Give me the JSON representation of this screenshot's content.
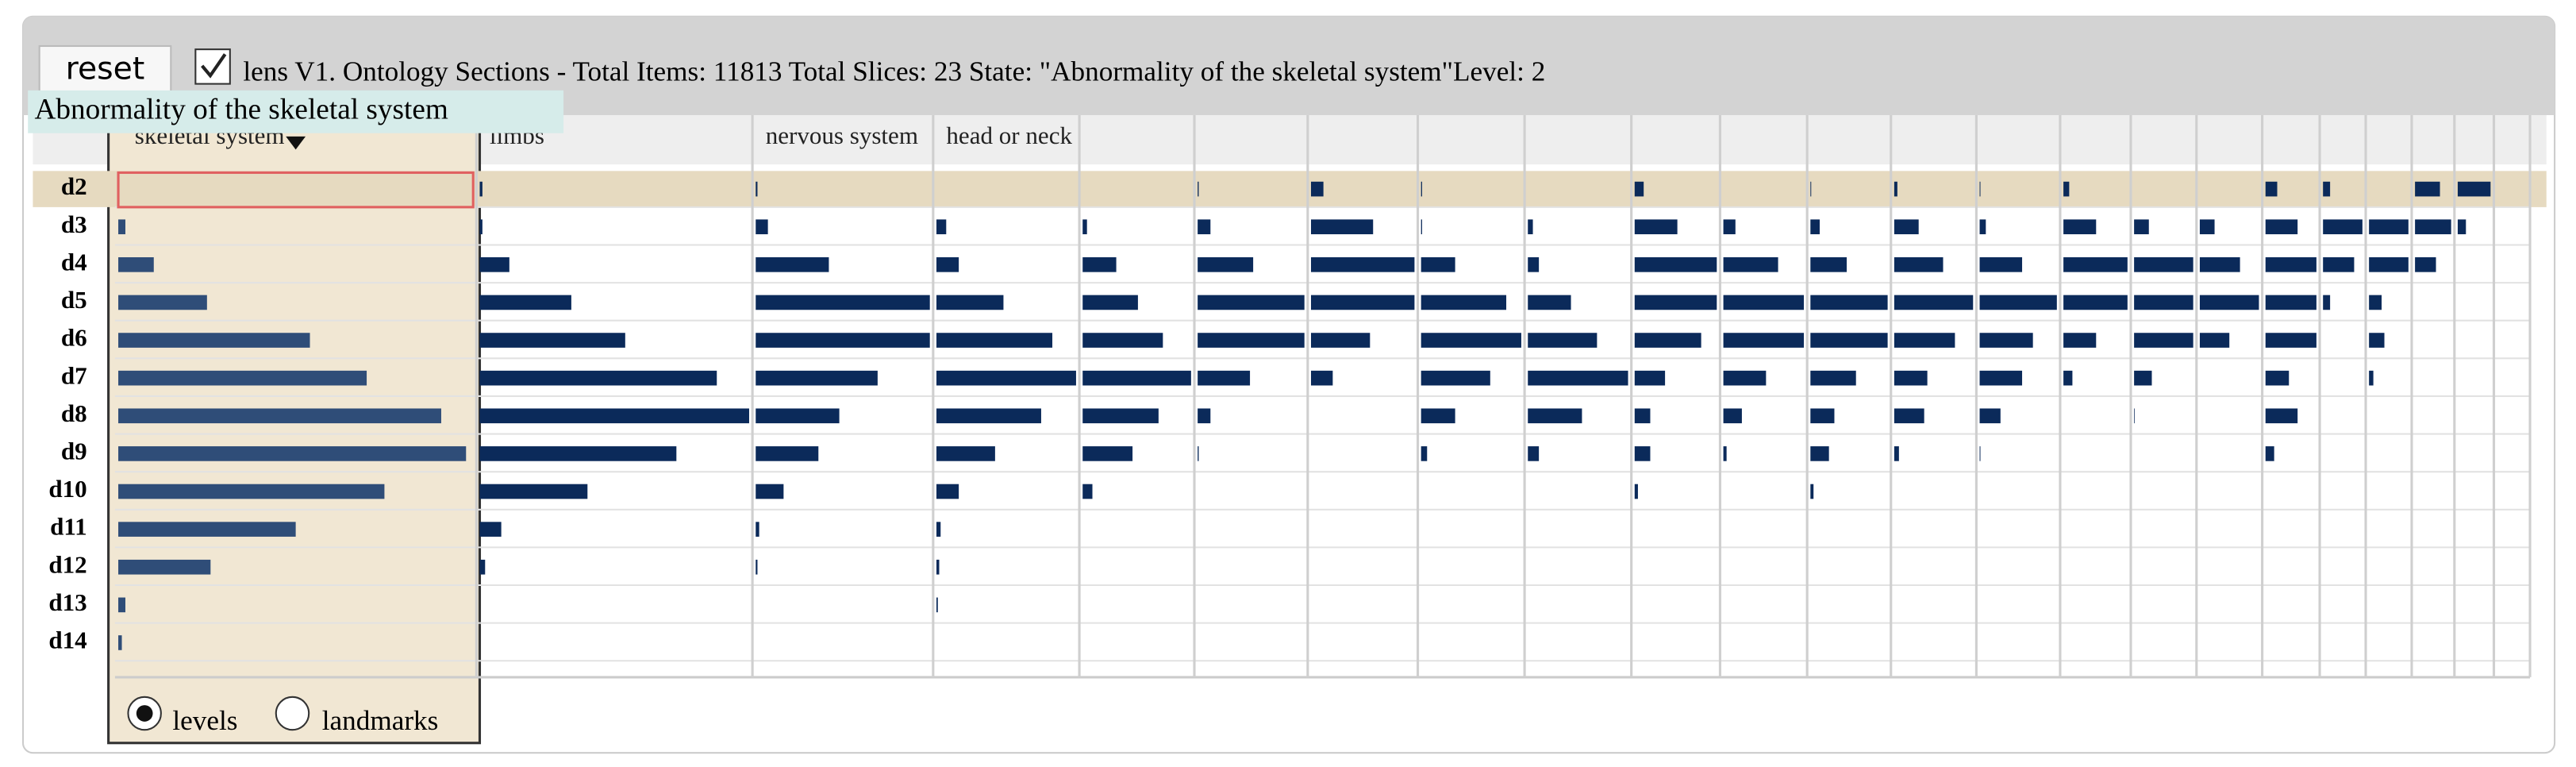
{
  "toolbar": {
    "reset": "reset",
    "status": "lens V1. Ontology Sections - Total Items: 11813 Total Slices: 23 State: \"Abnormality of the skeletal system\"Level: 2"
  },
  "tooltip": "Abnormality of the skeletal system",
  "rows": [
    "d2",
    "d3",
    "d4",
    "d5",
    "d6",
    "d7",
    "d8",
    "d9",
    "d10",
    "d11",
    "d12",
    "d13",
    "d14"
  ],
  "columns": [
    {
      "label": "skeletal system",
      "values": [
        0,
        2,
        10,
        25,
        54,
        70,
        91,
        98,
        75,
        50,
        26,
        2,
        1
      ]
    },
    {
      "label": "limbs",
      "values": [
        1,
        1,
        11,
        34,
        54,
        88,
        100,
        73,
        40,
        8,
        2,
        0,
        0
      ]
    },
    {
      "label": "nervous system",
      "values": [
        1,
        7,
        42,
        100,
        100,
        70,
        48,
        36,
        16,
        2,
        1,
        0,
        0
      ]
    },
    {
      "label": "head or neck",
      "values": [
        0,
        7,
        16,
        48,
        83,
        100,
        75,
        42,
        16,
        3,
        2,
        1,
        0
      ]
    },
    {
      "values": [
        0,
        4,
        31,
        51,
        74,
        100,
        70,
        46,
        9,
        0,
        0,
        0,
        0
      ]
    },
    {
      "values": [
        1,
        12,
        52,
        100,
        100,
        49,
        12,
        1,
        0,
        0,
        0,
        0,
        0
      ]
    },
    {
      "values": [
        12,
        60,
        100,
        100,
        57,
        21,
        0,
        0,
        0,
        0,
        0,
        0,
        0
      ]
    },
    {
      "values": [
        1,
        1,
        34,
        85,
        100,
        69,
        34,
        6,
        0,
        0,
        0,
        0,
        0
      ]
    },
    {
      "values": [
        0,
        5,
        11,
        43,
        69,
        100,
        54,
        11,
        0,
        0,
        0,
        0,
        0
      ]
    },
    {
      "values": [
        11,
        52,
        100,
        100,
        81,
        37,
        19,
        19,
        4,
        0,
        0,
        0,
        0
      ]
    },
    {
      "values": [
        0,
        15,
        68,
        100,
        100,
        53,
        23,
        4,
        0,
        0,
        0,
        0,
        0
      ]
    },
    {
      "values": [
        1,
        12,
        47,
        100,
        100,
        59,
        31,
        24,
        4,
        0,
        0,
        0,
        0
      ]
    },
    {
      "values": [
        4,
        31,
        62,
        100,
        77,
        42,
        38,
        6,
        0,
        0,
        0,
        0,
        0
      ]
    },
    {
      "values": [
        1,
        8,
        55,
        100,
        69,
        55,
        27,
        1,
        0,
        0,
        0,
        0,
        0
      ]
    },
    {
      "values": [
        9,
        51,
        100,
        100,
        51,
        14,
        0,
        0,
        0,
        0,
        0,
        0,
        0
      ]
    },
    {
      "values": [
        0,
        25,
        100,
        100,
        100,
        30,
        1,
        0,
        0,
        0,
        0,
        0,
        0
      ]
    },
    {
      "values": [
        0,
        25,
        68,
        100,
        50,
        0,
        0,
        0,
        0,
        0,
        0,
        0,
        0
      ]
    },
    {
      "values": [
        23,
        63,
        100,
        100,
        100,
        46,
        63,
        17,
        0,
        0,
        0,
        0,
        0
      ]
    },
    {
      "values": [
        18,
        100,
        79,
        18,
        0,
        0,
        0,
        0,
        0,
        0,
        0,
        0,
        0
      ]
    },
    {
      "values": [
        0,
        100,
        100,
        32,
        39,
        11,
        0,
        0,
        0,
        0,
        0,
        0,
        0
      ]
    },
    {
      "values": [
        69,
        100,
        58,
        0,
        0,
        0,
        0,
        0,
        0,
        0,
        0,
        0,
        0
      ]
    },
    {
      "values": [
        100,
        25,
        0,
        0,
        0,
        0,
        0,
        0,
        0,
        0,
        0,
        0,
        0
      ]
    },
    {
      "values": [
        0,
        0,
        0,
        0,
        0,
        0,
        0,
        0,
        0,
        0,
        0,
        0,
        0
      ]
    }
  ],
  "selected_row": 0,
  "selected_column": 0,
  "modes": {
    "levels": "levels",
    "landmarks": "landmarks",
    "selected": "levels"
  }
}
